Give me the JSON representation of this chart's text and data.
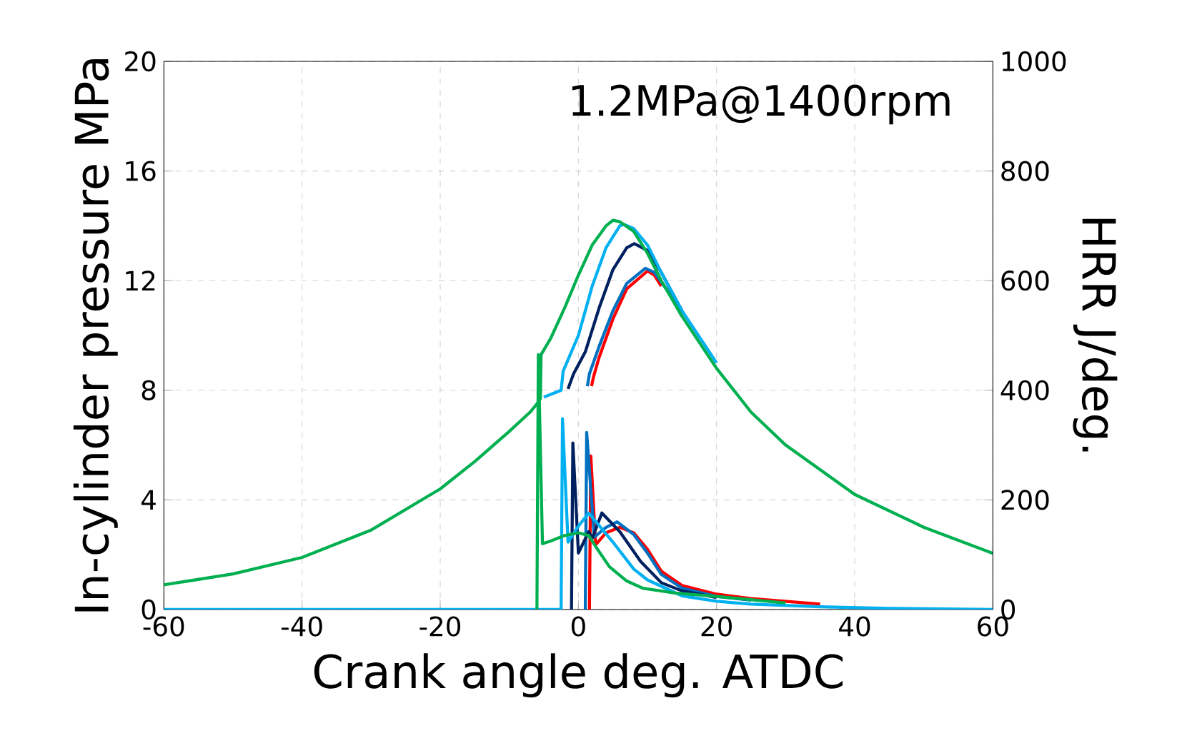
{
  "chart_data": {
    "type": "line",
    "xlabel": "Crank angle  deg. ATDC",
    "ylabel": "In-cylinder pressure  MPa",
    "y2label": "HRR  J/deg.",
    "annotations": [
      "1.2MPa@1400rpm"
    ],
    "xlim": [
      -60,
      60
    ],
    "xticks": [
      -60,
      -40,
      -20,
      0,
      20,
      40,
      60
    ],
    "ylim": [
      0,
      20
    ],
    "yticks": [
      0,
      4,
      8,
      12,
      16,
      20
    ],
    "y2lim": [
      0,
      1000
    ],
    "y2ticks": [
      0,
      200,
      400,
      600,
      800,
      1000
    ],
    "grid": true,
    "marker": "none",
    "line_style": "solid",
    "series": [
      {
        "color": "#ff0000",
        "axis": "y",
        "x": [
          1.9,
          2.2,
          3,
          5,
          7,
          10,
          11,
          12
        ],
        "values": [
          8.15,
          8.5,
          9.2,
          10.6,
          11.7,
          12.35,
          12.2,
          11.8
        ]
      },
      {
        "color": "#0070c0",
        "axis": "y",
        "x": [
          1.3,
          1.6,
          3,
          5,
          7,
          9.7,
          11,
          13,
          15
        ],
        "values": [
          8.15,
          8.6,
          9.6,
          10.9,
          11.9,
          12.45,
          12.3,
          11.6,
          10.7
        ]
      },
      {
        "color": "#002060",
        "axis": "y",
        "x": [
          -1.5,
          -0.7,
          1,
          3,
          5,
          7,
          8.1,
          10,
          12,
          15
        ],
        "values": [
          8.05,
          8.6,
          9.4,
          11.0,
          12.4,
          13.2,
          13.35,
          13.1,
          12.3,
          10.9
        ]
      },
      {
        "color": "#00b0f0",
        "axis": "y",
        "x": [
          -5,
          -3,
          -2.5,
          -2.2,
          0,
          2,
          4,
          6,
          6.6,
          8,
          10,
          12,
          15,
          20
        ],
        "values": [
          7.75,
          7.95,
          8.0,
          8.7,
          10.0,
          11.8,
          13.2,
          14.0,
          14.05,
          13.9,
          13.3,
          12.3,
          10.9,
          9.0
        ]
      },
      {
        "color": "#00b050",
        "axis": "y",
        "x": [
          -60,
          -50,
          -40,
          -30,
          -20,
          -15,
          -10,
          -7,
          -6,
          -5.5,
          -5.4,
          -4,
          -2,
          0,
          2,
          4,
          5,
          6,
          8,
          10,
          12,
          15,
          20,
          25,
          30,
          40,
          50,
          60
        ],
        "values": [
          0.9,
          1.3,
          1.9,
          2.9,
          4.4,
          5.4,
          6.5,
          7.2,
          7.5,
          7.7,
          9.3,
          9.9,
          11.0,
          12.2,
          13.3,
          14.0,
          14.2,
          14.15,
          13.8,
          13.0,
          12.0,
          10.7,
          8.8,
          7.2,
          6.0,
          4.2,
          3.0,
          2.05
        ]
      },
      {
        "color": "#ff0000",
        "axis": "y2",
        "x": [
          1.6,
          1.8,
          2.5,
          4,
          6,
          8,
          10,
          12,
          15,
          20,
          25,
          35
        ],
        "values": [
          0,
          280,
          118,
          140,
          150,
          140,
          110,
          70,
          44,
          28,
          20,
          10
        ]
      },
      {
        "color": "#0070c0",
        "axis": "y2",
        "x": [
          1,
          1.2,
          2.3,
          4,
          5.6,
          8,
          10,
          12,
          15,
          20,
          25
        ],
        "values": [
          0,
          323,
          132,
          150,
          160,
          137,
          103,
          64,
          39,
          24,
          17
        ]
      },
      {
        "color": "#002060",
        "axis": "y2",
        "x": [
          -1,
          -0.8,
          0,
          1.5,
          2,
          3.4,
          6,
          9,
          12,
          15,
          20
        ],
        "values": [
          0,
          304,
          103,
          142,
          130,
          176,
          142,
          88,
          49,
          34,
          22
        ]
      },
      {
        "color": "#00b0f0",
        "axis": "y2",
        "x": [
          -60,
          -2.5,
          -2.3,
          -1.5,
          0,
          1.5,
          5,
          8,
          10,
          15,
          20,
          25,
          35,
          45,
          60
        ],
        "values": [
          0,
          0,
          348,
          123,
          152,
          176,
          123,
          74,
          54,
          25,
          15,
          10,
          5,
          2,
          0
        ]
      },
      {
        "color": "#00b050",
        "axis": "y2",
        "x": [
          -6,
          -5.8,
          -5.2,
          -4,
          -2,
          0,
          1.5,
          2.5,
          4.5,
          7,
          9.3,
          14,
          20,
          30
        ],
        "values": [
          0,
          465,
          120,
          125,
          135,
          140,
          135,
          115,
          78,
          52,
          39,
          30,
          24,
          12
        ]
      }
    ]
  }
}
